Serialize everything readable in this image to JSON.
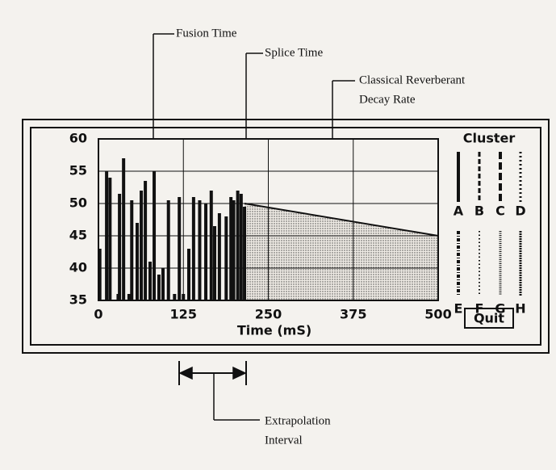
{
  "chart_data": {
    "type": "bar",
    "xlabel": "Time (mS)",
    "xlim": [
      0,
      500
    ],
    "ylim": [
      35,
      60
    ],
    "xticks": [
      0,
      125,
      250,
      375,
      500
    ],
    "yticks": [
      35,
      40,
      45,
      50,
      55,
      60
    ],
    "grid": true,
    "color": "#111111",
    "impulses": {
      "x": [
        2,
        12,
        17,
        29,
        31,
        37,
        45,
        49,
        57,
        63,
        69,
        76,
        82,
        89,
        95,
        103,
        112,
        119,
        125,
        133,
        140,
        149,
        158,
        166,
        171,
        178,
        188,
        195,
        199,
        205,
        210,
        215
      ],
      "values": [
        43,
        55,
        54,
        36,
        51.5,
        57,
        36,
        50.5,
        47,
        52,
        53.5,
        41,
        55,
        39,
        40,
        50.5,
        36,
        51,
        36,
        43,
        51,
        50.5,
        50,
        52,
        46.5,
        48.5,
        48,
        51,
        50.5,
        52,
        51.5,
        49.5
      ]
    },
    "decay": {
      "x": [
        215,
        500
      ],
      "values": [
        50,
        45
      ]
    },
    "annotations": {
      "fusion": "Fusion Time",
      "splice": "Splice Time",
      "decay_rate": [
        "Classical Reverberant",
        "Decay Rate"
      ],
      "extrapolation": [
        "Extrapolation",
        "Interval"
      ]
    },
    "cluster": {
      "title": "Cluster",
      "labels": [
        "A",
        "B",
        "C",
        "D",
        "E",
        "F",
        "G",
        "H"
      ]
    },
    "quit_button": "Quit"
  }
}
